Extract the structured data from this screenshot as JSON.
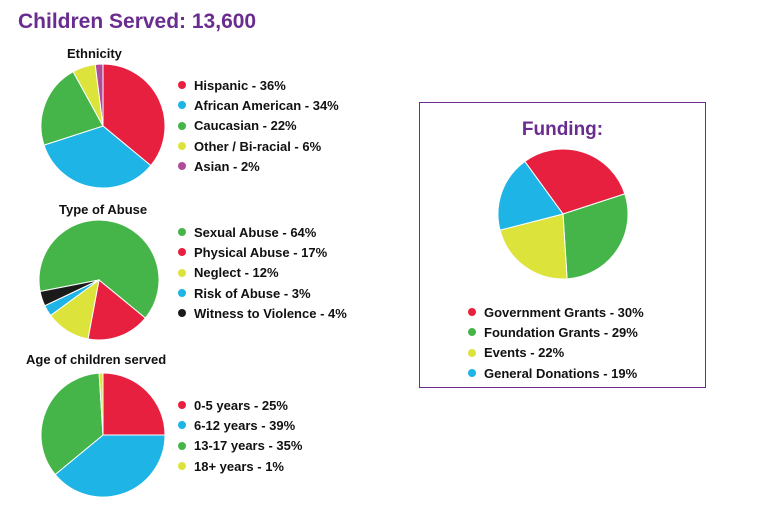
{
  "title": "Children Served: 13,600",
  "chart_data": [
    {
      "type": "pie",
      "title": "Ethnicity",
      "series": [
        {
          "values": [
            36,
            34,
            22,
            6,
            2
          ],
          "labels": [
            "Hispanic - 36%",
            "African American - 34%",
            "Caucasian - 22%",
            "Other / Bi-racial - 6%",
            "Asian - 2%"
          ],
          "colors": [
            "#e8203f",
            "#1eb4e6",
            "#46b549",
            "#dce33b",
            "#b04a9a"
          ]
        }
      ],
      "legend": "right"
    },
    {
      "type": "pie",
      "title": "Type of Abuse",
      "series": [
        {
          "values": [
            64,
            17,
            12,
            3,
            4
          ],
          "labels": [
            "Sexual Abuse - 64%",
            "Physical Abuse - 17%",
            "Neglect - 12%",
            "Risk of Abuse - 3%",
            "Witness to Violence - 4%"
          ],
          "colors": [
            "#46b549",
            "#e8203f",
            "#dce33b",
            "#1eb4e6",
            "#1a1a1a"
          ]
        }
      ],
      "legend": "right"
    },
    {
      "type": "pie",
      "title": "Age of children served",
      "series": [
        {
          "values": [
            25,
            39,
            35,
            1
          ],
          "labels": [
            "0-5 years - 25%",
            "6-12 years - 39%",
            "13-17 years - 35%",
            "18+ years - 1%"
          ],
          "colors": [
            "#e8203f",
            "#1eb4e6",
            "#46b549",
            "#dce33b"
          ]
        }
      ],
      "legend": "right"
    },
    {
      "type": "pie",
      "title": "Funding:",
      "series": [
        {
          "values": [
            30,
            29,
            22,
            19
          ],
          "labels": [
            "Government Grants - 30%",
            "Foundation Grants - 29%",
            "Events - 22%",
            "General Donations - 19%"
          ],
          "colors": [
            "#e8203f",
            "#46b549",
            "#dce33b",
            "#1eb4e6"
          ]
        }
      ],
      "legend": "bottom"
    }
  ]
}
